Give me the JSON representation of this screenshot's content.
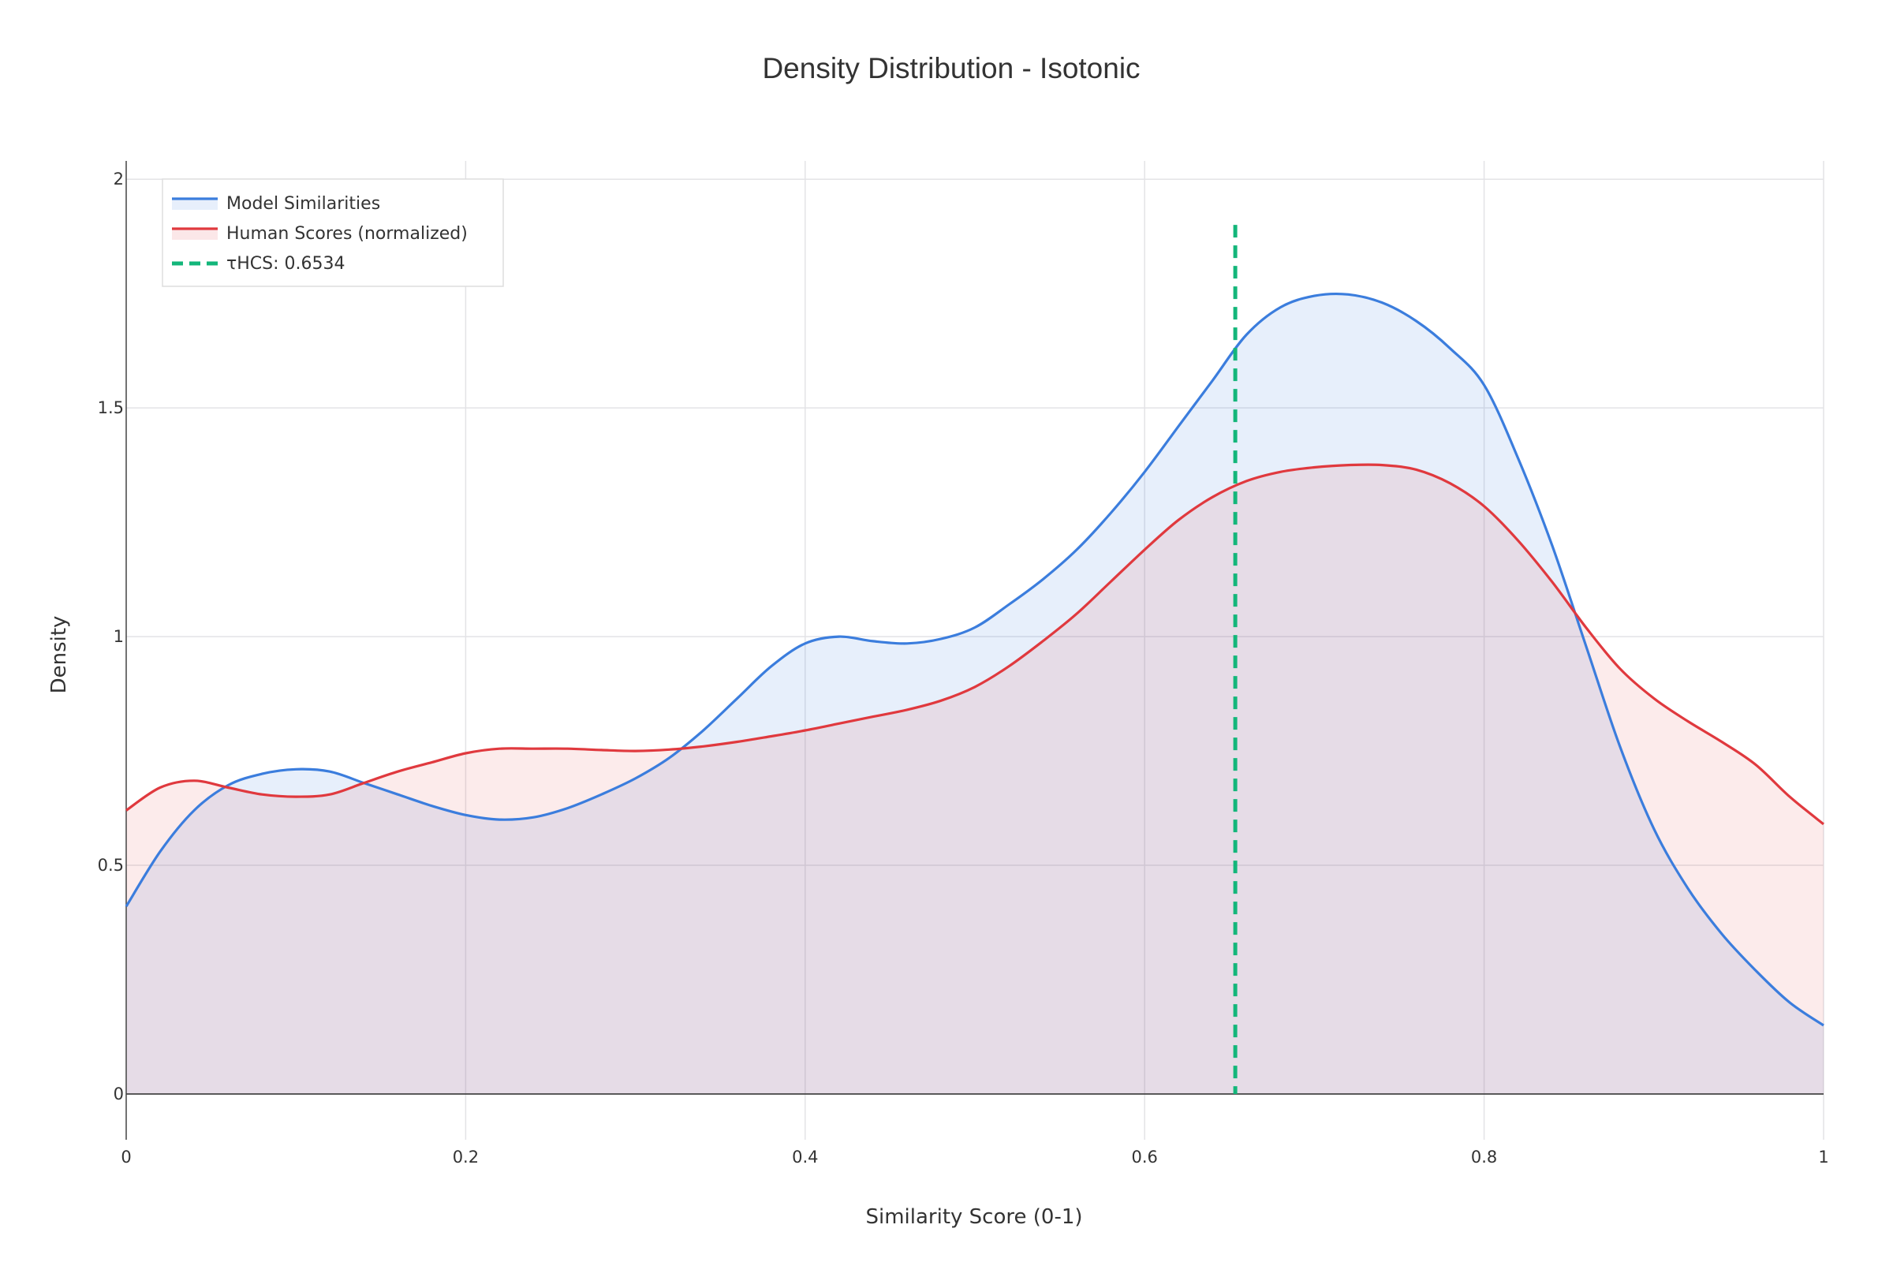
{
  "chart_data": {
    "type": "area",
    "title": "Density Distribution - Isotonic",
    "xlabel": "Similarity Score (0-1)",
    "ylabel": "Density",
    "xlim": [
      0,
      1
    ],
    "ylim": [
      -0.1,
      2.04
    ],
    "x_ticks": [
      {
        "value": 0,
        "label": "0"
      },
      {
        "value": 0.2,
        "label": "0.2"
      },
      {
        "value": 0.4,
        "label": "0.4"
      },
      {
        "value": 0.6,
        "label": "0.6"
      },
      {
        "value": 0.8,
        "label": "0.8"
      },
      {
        "value": 1,
        "label": "1"
      }
    ],
    "y_ticks": [
      {
        "value": 0,
        "label": "0"
      },
      {
        "value": 0.5,
        "label": "0.5"
      },
      {
        "value": 1,
        "label": "1"
      },
      {
        "value": 1.5,
        "label": "1.5"
      },
      {
        "value": 2,
        "label": "2"
      }
    ],
    "grid": true,
    "legend_position": "top-left",
    "series": [
      {
        "name": "Model Similarities",
        "color": "#3b7ddd",
        "fill": "rgba(59,125,221,0.12)",
        "x": [
          0,
          0.02,
          0.04,
          0.06,
          0.08,
          0.1,
          0.12,
          0.14,
          0.16,
          0.18,
          0.2,
          0.22,
          0.24,
          0.26,
          0.28,
          0.3,
          0.32,
          0.34,
          0.36,
          0.38,
          0.4,
          0.42,
          0.44,
          0.46,
          0.48,
          0.5,
          0.52,
          0.54,
          0.56,
          0.58,
          0.6,
          0.62,
          0.64,
          0.66,
          0.68,
          0.7,
          0.72,
          0.74,
          0.76,
          0.78,
          0.8,
          0.82,
          0.84,
          0.86,
          0.88,
          0.9,
          0.92,
          0.94,
          0.96,
          0.98,
          1.0
        ],
        "values": [
          0.41,
          0.53,
          0.62,
          0.675,
          0.7,
          0.71,
          0.705,
          0.68,
          0.655,
          0.63,
          0.61,
          0.6,
          0.605,
          0.625,
          0.655,
          0.69,
          0.735,
          0.795,
          0.865,
          0.935,
          0.985,
          1.0,
          0.99,
          0.985,
          0.995,
          1.02,
          1.07,
          1.125,
          1.19,
          1.27,
          1.36,
          1.46,
          1.56,
          1.66,
          1.72,
          1.745,
          1.748,
          1.73,
          1.69,
          1.63,
          1.55,
          1.39,
          1.2,
          0.98,
          0.76,
          0.58,
          0.45,
          0.35,
          0.27,
          0.2,
          0.15
        ]
      },
      {
        "name": "Human Scores (normalized)",
        "color": "#e0393e",
        "fill": "rgba(224,57,62,0.10)",
        "x": [
          0,
          0.02,
          0.04,
          0.06,
          0.08,
          0.1,
          0.12,
          0.14,
          0.16,
          0.18,
          0.2,
          0.22,
          0.24,
          0.26,
          0.28,
          0.3,
          0.32,
          0.34,
          0.36,
          0.38,
          0.4,
          0.42,
          0.44,
          0.46,
          0.48,
          0.5,
          0.52,
          0.54,
          0.56,
          0.58,
          0.6,
          0.62,
          0.64,
          0.66,
          0.68,
          0.7,
          0.72,
          0.74,
          0.76,
          0.78,
          0.8,
          0.82,
          0.84,
          0.86,
          0.88,
          0.9,
          0.92,
          0.94,
          0.96,
          0.98,
          1.0
        ],
        "values": [
          0.62,
          0.67,
          0.685,
          0.67,
          0.655,
          0.65,
          0.655,
          0.68,
          0.705,
          0.725,
          0.745,
          0.755,
          0.755,
          0.755,
          0.752,
          0.75,
          0.753,
          0.76,
          0.77,
          0.782,
          0.795,
          0.81,
          0.825,
          0.84,
          0.86,
          0.89,
          0.935,
          0.99,
          1.05,
          1.12,
          1.19,
          1.255,
          1.305,
          1.34,
          1.36,
          1.37,
          1.375,
          1.375,
          1.365,
          1.335,
          1.285,
          1.21,
          1.12,
          1.02,
          0.93,
          0.865,
          0.815,
          0.77,
          0.72,
          0.65,
          0.59
        ]
      }
    ],
    "annotations": [
      {
        "name": "τHCS: 0.6534",
        "type": "vline",
        "x": 0.6534,
        "y_top": 1.9,
        "color": "#13b67a",
        "dash": "dash"
      }
    ]
  }
}
